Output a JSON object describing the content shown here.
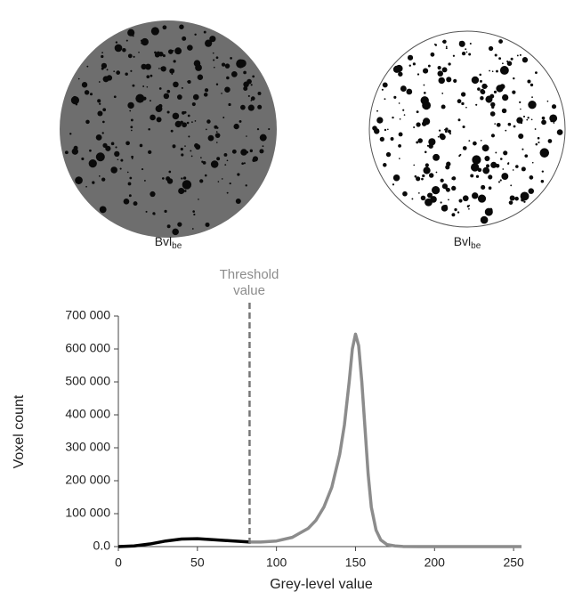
{
  "images": [
    {
      "label": "Bvl",
      "subscript": "be"
    },
    {
      "label": "Bvl",
      "subscript": "be"
    }
  ],
  "chart_data": {
    "type": "line",
    "annotation": "Threshold value",
    "threshold": 83,
    "x_label": "Grey-level value",
    "y_label": "Voxel count",
    "x": [
      0,
      10,
      20,
      30,
      40,
      50,
      60,
      70,
      80,
      83,
      90,
      100,
      110,
      120,
      125,
      130,
      135,
      140,
      143,
      146,
      148,
      150,
      152,
      154,
      156,
      158,
      160,
      163,
      166,
      170,
      175,
      180,
      190,
      200,
      220,
      255
    ],
    "series": [
      {
        "color": "#000000",
        "values": [
          0,
          2000,
          8000,
          17000,
          23000,
          24000,
          21000,
          18000,
          15000,
          14000,
          null,
          null,
          null,
          null,
          null,
          null,
          null,
          null,
          null,
          null,
          null,
          null,
          null,
          null,
          null,
          null,
          null,
          null,
          null,
          null,
          null,
          null,
          null,
          null,
          null,
          null
        ]
      },
      {
        "color": "#8c8c8c",
        "values": [
          null,
          null,
          null,
          null,
          null,
          null,
          null,
          null,
          null,
          14000,
          14000,
          17000,
          28000,
          55000,
          80000,
          120000,
          180000,
          280000,
          370000,
          500000,
          600000,
          645000,
          610000,
          500000,
          360000,
          220000,
          120000,
          50000,
          20000,
          6000,
          2000,
          500,
          0,
          0,
          0,
          0
        ]
      }
    ],
    "xlim": [
      0,
      255
    ],
    "xticks": [
      0,
      50,
      100,
      150,
      200,
      250
    ],
    "ylim": [
      0,
      700000
    ],
    "yticks": [
      {
        "value": 0,
        "label": "0.0"
      },
      {
        "value": 100000,
        "label": "100 000"
      },
      {
        "value": 200000,
        "label": "200 000"
      },
      {
        "value": 300000,
        "label": "300 000"
      },
      {
        "value": 400000,
        "label": "400 000"
      },
      {
        "value": 500000,
        "label": "500 000"
      },
      {
        "value": 600000,
        "label": "600 000"
      },
      {
        "value": 700000,
        "label": "700 000"
      }
    ]
  }
}
